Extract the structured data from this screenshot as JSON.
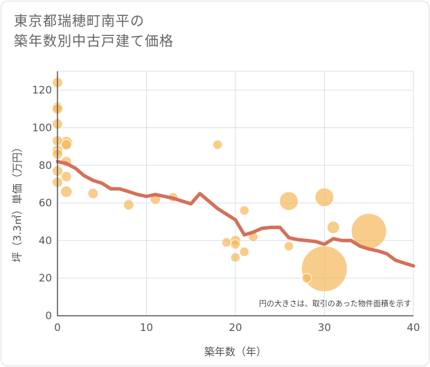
{
  "title_lines": [
    "東京都瑞穂町南平の",
    "築年数別中古戸建て価格"
  ],
  "chart_data": {
    "type": "scatter",
    "title": "東京都瑞穂町南平の築年数別中古戸建て価格",
    "xlabel": "築年数（年）",
    "ylabel": "坪（3.3㎡）単価（万円）",
    "xlim": [
      0,
      40
    ],
    "ylim": [
      0,
      130
    ],
    "xticks": [
      0,
      10,
      20,
      30,
      40
    ],
    "yticks": [
      0,
      20,
      40,
      60,
      80,
      100,
      120
    ],
    "grid": true,
    "note": "円の大きさは、取引のあった物件面積を示す",
    "colors": {
      "bubble": "#f5b85a",
      "line": "#d4705a",
      "grid": "#d7e0e8",
      "axis": "#555555"
    },
    "points": [
      {
        "x": 0,
        "y": 124,
        "s": 1
      },
      {
        "x": 0,
        "y": 111,
        "s": 1
      },
      {
        "x": 0,
        "y": 110,
        "s": 1
      },
      {
        "x": 0,
        "y": 102,
        "s": 1
      },
      {
        "x": 0,
        "y": 93,
        "s": 1
      },
      {
        "x": 0,
        "y": 88,
        "s": 1
      },
      {
        "x": 0,
        "y": 86,
        "s": 1
      },
      {
        "x": 0,
        "y": 77,
        "s": 1
      },
      {
        "x": 0,
        "y": 71,
        "s": 1
      },
      {
        "x": 1,
        "y": 92,
        "s": 1.2
      },
      {
        "x": 1,
        "y": 91,
        "s": 1
      },
      {
        "x": 1,
        "y": 82,
        "s": 1
      },
      {
        "x": 1,
        "y": 74,
        "s": 1
      },
      {
        "x": 1,
        "y": 66,
        "s": 1.1
      },
      {
        "x": 4,
        "y": 65,
        "s": 1
      },
      {
        "x": 8,
        "y": 59,
        "s": 1
      },
      {
        "x": 11,
        "y": 62,
        "s": 1
      },
      {
        "x": 13,
        "y": 63,
        "s": 0.9
      },
      {
        "x": 18,
        "y": 91,
        "s": 0.9
      },
      {
        "x": 19,
        "y": 39,
        "s": 0.9
      },
      {
        "x": 20,
        "y": 40,
        "s": 1
      },
      {
        "x": 20,
        "y": 38,
        "s": 0.9
      },
      {
        "x": 20,
        "y": 31,
        "s": 0.9
      },
      {
        "x": 21,
        "y": 56,
        "s": 0.9
      },
      {
        "x": 21,
        "y": 34,
        "s": 0.9
      },
      {
        "x": 22,
        "y": 42,
        "s": 0.9
      },
      {
        "x": 26,
        "y": 61,
        "s": 1.8
      },
      {
        "x": 26,
        "y": 37,
        "s": 0.9
      },
      {
        "x": 28,
        "y": 20,
        "s": 0.9
      },
      {
        "x": 30,
        "y": 63,
        "s": 1.8
      },
      {
        "x": 30,
        "y": 25,
        "s": 4.4
      },
      {
        "x": 31,
        "y": 47,
        "s": 1.2
      },
      {
        "x": 35,
        "y": 45,
        "s": 3.4
      }
    ],
    "trend": {
      "x": [
        0,
        1,
        2,
        3,
        4,
        5,
        6,
        7,
        8,
        9,
        10,
        11,
        12,
        13,
        14,
        15,
        16,
        17,
        18,
        19,
        20,
        21,
        22,
        23,
        24,
        25,
        26,
        27,
        28,
        29,
        30,
        31,
        32,
        33,
        34,
        35,
        36,
        37,
        38,
        39,
        40
      ],
      "y": [
        82,
        81,
        78.5,
        74.5,
        72,
        70.5,
        67.5,
        67.5,
        66,
        64.5,
        63.5,
        64.5,
        63.5,
        62.5,
        61,
        59.5,
        65,
        61,
        57,
        54,
        51,
        43,
        44.5,
        46.5,
        47,
        47,
        41.5,
        40.5,
        40,
        39.5,
        38,
        41,
        40,
        40,
        37,
        35.5,
        34.5,
        33,
        29.5,
        28,
        26.5
      ]
    }
  }
}
